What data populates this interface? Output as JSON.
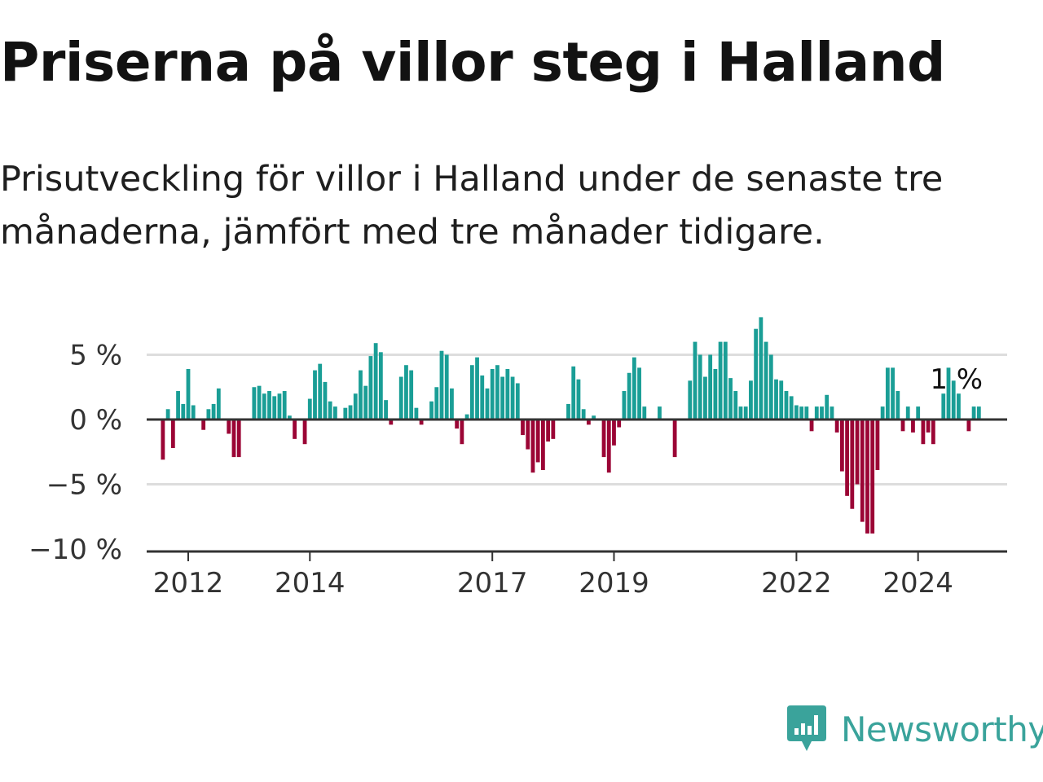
{
  "title": "Priserna på villor steg i Halland",
  "subtitle": "Prisutveckling för villor i Halland under de senaste tre månaderna, jämfört med tre månader tidigare.",
  "brand": {
    "name": "Newsworthy",
    "color": "#3aa39b",
    "icon": "bar-chart-bubble-icon"
  },
  "colors": {
    "positive": "#1a9e96",
    "negative": "#9b0535",
    "grid": "#dddddd",
    "axis": "#333333"
  },
  "chart_data": {
    "type": "bar",
    "y_tick_labels": [
      "5 %",
      "0 %",
      "−5 %",
      "−10 %"
    ],
    "y_ticks": [
      5,
      0,
      -5,
      -10
    ],
    "ylim": [
      -10.3,
      8
    ],
    "x_tick_labels": [
      "2012",
      "2014",
      "2017",
      "2019",
      "2022",
      "2024"
    ],
    "x_ticks": [
      "2012-01",
      "2014-01",
      "2017-01",
      "2019-01",
      "2022-01",
      "2024-01"
    ],
    "annotation": {
      "text": "1 %",
      "at": "2024-04"
    },
    "start": "2011-08",
    "unit": "%",
    "grid": true,
    "values": [
      -3.1,
      0.8,
      -2.2,
      2.2,
      1.2,
      3.9,
      1.1,
      0,
      -0.8,
      0.8,
      1.2,
      2.4,
      0,
      -1.1,
      -2.9,
      -2.9,
      0,
      0,
      2.5,
      2.6,
      2.0,
      2.2,
      1.8,
      2.0,
      2.2,
      0.3,
      -1.5,
      0,
      -1.9,
      1.6,
      3.8,
      4.3,
      2.9,
      1.4,
      1.0,
      0,
      0.9,
      1.1,
      2.0,
      3.8,
      2.6,
      4.9,
      5.9,
      5.2,
      1.5,
      -0.4,
      0,
      3.3,
      4.2,
      3.8,
      0.9,
      -0.4,
      0,
      1.4,
      2.5,
      5.3,
      5.0,
      2.4,
      -0.7,
      -1.9,
      0.4,
      4.2,
      4.8,
      3.4,
      2.4,
      3.9,
      4.2,
      3.3,
      3.9,
      3.3,
      2.8,
      -1.2,
      -2.3,
      -4.1,
      -3.3,
      -3.9,
      -1.7,
      -1.5,
      0,
      0,
      1.2,
      4.1,
      3.1,
      0.8,
      -0.4,
      0.3,
      0,
      -2.9,
      -4.1,
      -2.0,
      -0.6,
      2.2,
      3.6,
      4.8,
      4.0,
      1.0,
      0,
      0,
      1.0,
      0,
      0,
      -2.9,
      0,
      0,
      3.0,
      6.0,
      5.0,
      3.3,
      5.0,
      3.9,
      6.0,
      6.0,
      3.2,
      2.2,
      1.0,
      1.0,
      3.0,
      7.0,
      7.9,
      6.0,
      5.0,
      3.1,
      3.0,
      2.2,
      1.8,
      1.1,
      1.0,
      1.0,
      -0.9,
      1.0,
      1.0,
      1.9,
      1.0,
      -1.0,
      -4.0,
      -5.9,
      -6.9,
      -5.0,
      -7.9,
      -8.8,
      -8.8,
      -3.9,
      1.0,
      4.0,
      4.0,
      2.2,
      -0.9,
      1.0,
      -1.0,
      1.0,
      -1.9,
      -1.0,
      -1.9,
      0,
      2.0,
      4.0,
      3.0,
      2.0,
      0,
      -0.9,
      1.0,
      1.0
    ]
  }
}
